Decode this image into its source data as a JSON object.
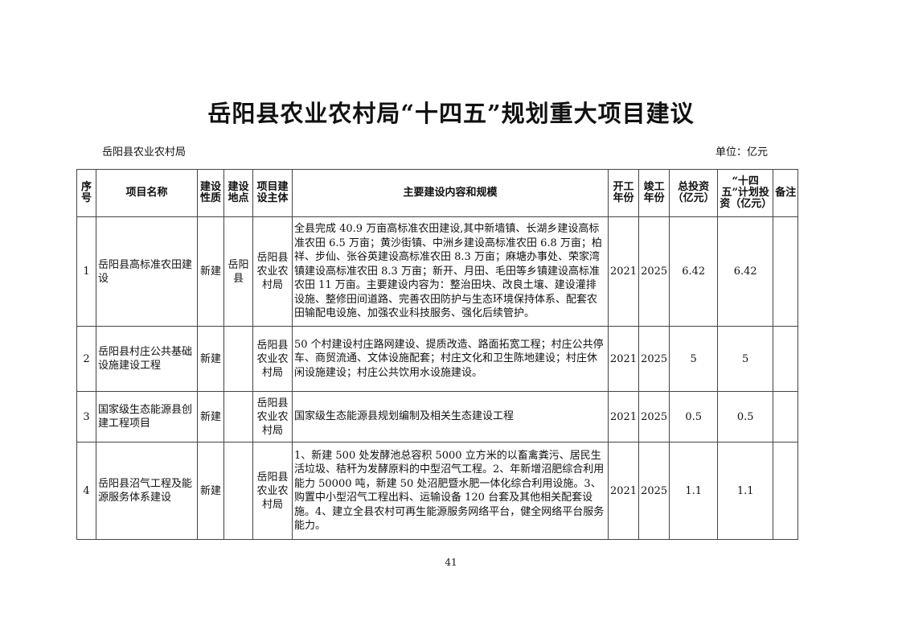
{
  "title": "岳阳县农业农村局“十四五”规划重大项目建议",
  "organization": "岳阳县农业农村局",
  "unit": "单位：亿元",
  "columns": [
    "序号",
    "项目名称",
    "建设性质",
    "建设地点",
    "项目建设主体",
    "主要建设内容和规模",
    "开工年份",
    "竣工年份",
    "总投资（亿元）",
    "“十四五”计划投资（亿元）",
    "备注"
  ],
  "rows": [
    {
      "no": "1",
      "name": "岳阳县高标准农田建设",
      "nature": "新建",
      "location": "岳阳县",
      "owner": "岳阳县农业农村局",
      "content": "全县完成 40.9 万亩高标准农田建设,其中新墙镇、长湖乡建设高标准农田 6.5 万亩；黄沙街镇、中洲乡建设高标准农田 6.8 万亩；柏祥、步仙、张谷英建设高标准农田 8.3 万亩；麻塘办事处、荣家湾镇建设高标准农田 8.3 万亩；新开、月田、毛田等乡镇建设高标准农田 11 万亩。主要建设内容为：整治田块、改良土壤、建设灌排设施、整修田间道路、完善农田防护与生态环境保持体系、配套农田输配电设施、加强农业科技服务、强化后续管护。",
      "start": "2021",
      "end": "2025",
      "total": "6.42",
      "plan": "6.42",
      "note": ""
    },
    {
      "no": "2",
      "name": "岳阳县村庄公共基础设施建设工程",
      "nature": "新建",
      "location": "",
      "owner": "岳阳县农业农村局",
      "content": "50 个村建设村庄路网建设、提质改造、路面拓宽工程；村庄公共停车、商贸流通、文体设施配套；村庄文化和卫生陈地建设；村庄休闲设施建设；村庄公共饮用水设施建设。",
      "start": "2021",
      "end": "2025",
      "total": "5",
      "plan": "5",
      "note": ""
    },
    {
      "no": "3",
      "name": "国家级生态能源县创建工程项目",
      "nature": "新建",
      "location": "",
      "owner": "岳阳县农业农村局",
      "content": "国家级生态能源县规划编制及相关生态建设工程",
      "start": "2021",
      "end": "2025",
      "total": "0.5",
      "plan": "0.5",
      "note": ""
    },
    {
      "no": "4",
      "name": "岳阳县沼气工程及能源服务体系建设",
      "nature": "新建",
      "location": "",
      "owner": "岳阳县农业农村局",
      "content": "1、新建 500 处发酵池总容积 5000 立方米的以畜禽粪污、居民生活垃圾、秸秆为发酵原料的中型沼气工程。2、年新增沼肥综合利用能力 50000 吨，新建 50 处沼肥暨水肥一体化综合利用设施。3、购置中小型沼气工程出料、运输设备 120 台套及其他相关配套设施。4、建立全县农村可再生能源服务网络平台，健全网络平台服务能力。",
      "start": "2021",
      "end": "2025",
      "total": "1.1",
      "plan": "1.1",
      "note": ""
    }
  ],
  "page_number": "41"
}
